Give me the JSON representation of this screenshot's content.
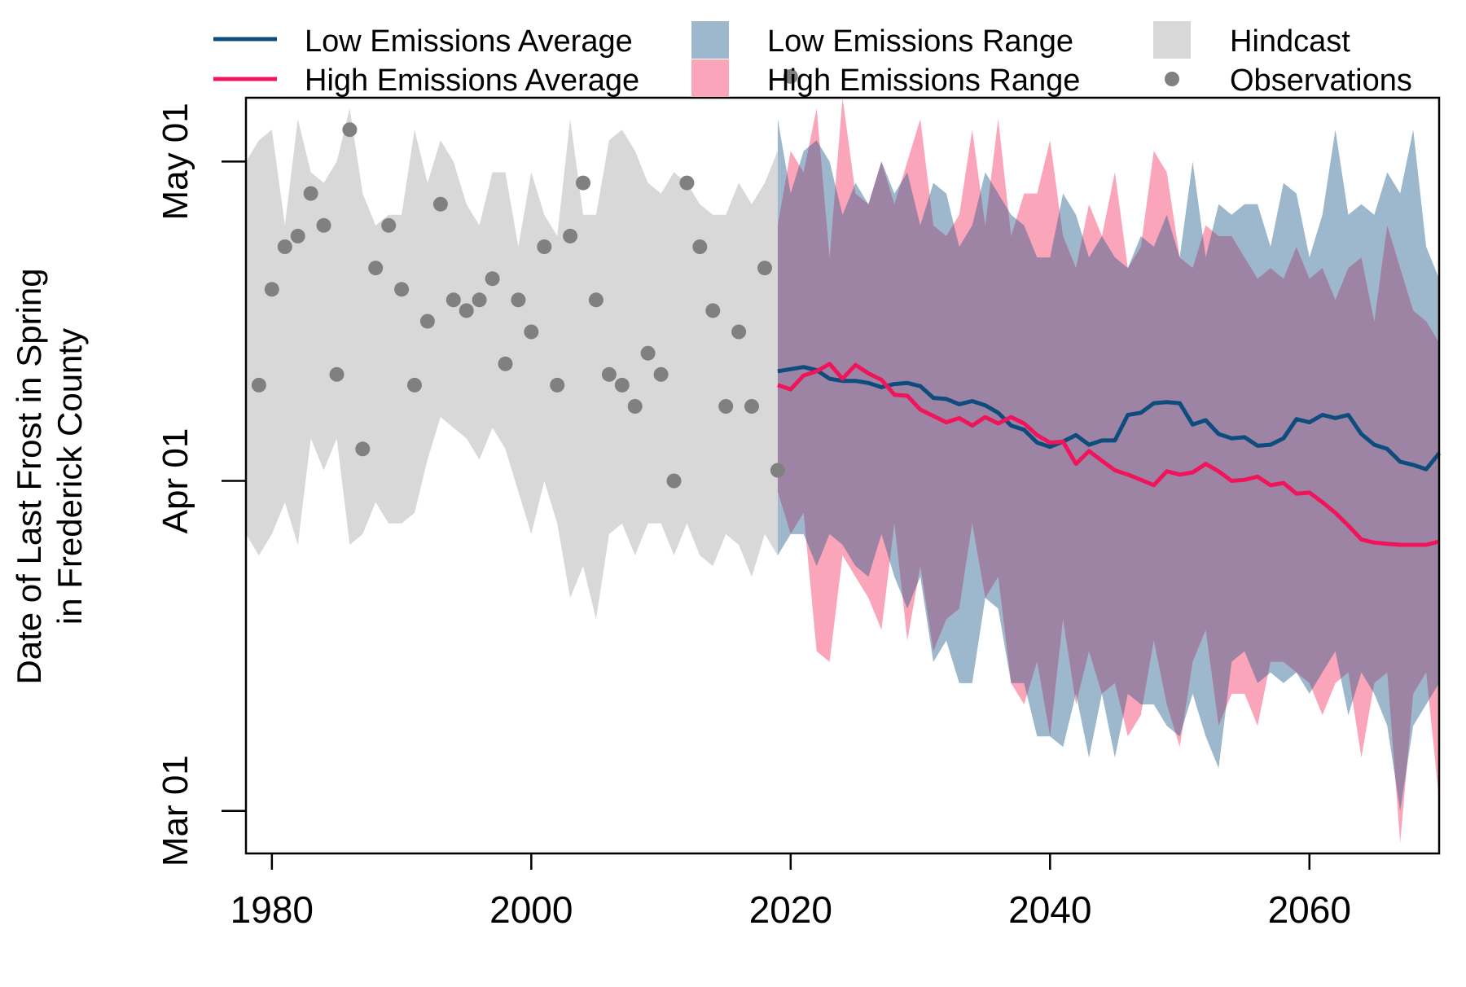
{
  "chart_data": {
    "type": "area",
    "title": "",
    "xlabel": "",
    "ylabel_line1": "Date of Last Frost in Spring",
    "ylabel_line2": "in Frederick County",
    "x_ticks": [
      1980,
      2000,
      2020,
      2040,
      2060
    ],
    "x_tick_labels": [
      "1980",
      "2000",
      "2020",
      "2040",
      "2060"
    ],
    "xlim": [
      1978,
      2070
    ],
    "y_unit": "day of year",
    "ylim": [
      56,
      127
    ],
    "y_ticks": [
      {
        "label": "Mar 01",
        "value": 60
      },
      {
        "label": "Apr 01",
        "value": 91
      },
      {
        "label": "May 01",
        "value": 121
      }
    ],
    "grid": false,
    "legend_position": "top",
    "legend": {
      "low_avg": "Low Emissions Average",
      "high_avg": "High Emissions Average",
      "low_range": "Low Emissions Range",
      "high_range": "High Emissions Range",
      "hindcast": "Hindcast",
      "observations": "Observations"
    },
    "colors": {
      "low_avg": "#0e4c7e",
      "high_avg": "#f0155a",
      "low_range": "#9db8cc",
      "high_range": "#fba5ba",
      "overlap": "#9e84a4",
      "hindcast": "#d8d8d8",
      "observations": "#808080"
    },
    "series": [
      {
        "name": "Hindcast",
        "kind": "range",
        "x": [
          1978,
          1979,
          1980,
          1981,
          1982,
          1983,
          1984,
          1985,
          1986,
          1987,
          1988,
          1989,
          1990,
          1991,
          1992,
          1993,
          1994,
          1995,
          1996,
          1997,
          1998,
          1999,
          2000,
          2001,
          2002,
          2003,
          2004,
          2005,
          2006,
          2007,
          2008,
          2009,
          2010,
          2011,
          2012,
          2013,
          2014,
          2015,
          2016,
          2017,
          2018,
          2019
        ],
        "upper": [
          121,
          123,
          124,
          115,
          125,
          120,
          119,
          121,
          126,
          118,
          115,
          116,
          116,
          124,
          119,
          123,
          121,
          117,
          115,
          120,
          120,
          113,
          120,
          116,
          114,
          125,
          116,
          116,
          123,
          124,
          122,
          119,
          118,
          120,
          119,
          117,
          116,
          116,
          119,
          117,
          119,
          122
        ],
        "lower": [
          86,
          84,
          86,
          89,
          85,
          95,
          92,
          95,
          85,
          86,
          89,
          87,
          87,
          88,
          93,
          97,
          96,
          95,
          93,
          96,
          94,
          90,
          86,
          91,
          87,
          80,
          83,
          78,
          86,
          87,
          84,
          87,
          87,
          84,
          87,
          84,
          83,
          86,
          85,
          82,
          86,
          84
        ]
      },
      {
        "name": "Low Emissions Range",
        "kind": "range",
        "x": [
          2019,
          2020,
          2021,
          2022,
          2023,
          2024,
          2025,
          2026,
          2027,
          2028,
          2029,
          2030,
          2031,
          2032,
          2033,
          2034,
          2035,
          2036,
          2037,
          2038,
          2039,
          2040,
          2041,
          2042,
          2043,
          2044,
          2045,
          2046,
          2047,
          2048,
          2049,
          2050,
          2051,
          2052,
          2053,
          2054,
          2055,
          2056,
          2057,
          2058,
          2059,
          2060,
          2061,
          2062,
          2063,
          2064,
          2065,
          2066,
          2067,
          2068,
          2069,
          2070
        ],
        "upper": [
          125,
          118,
          122,
          123,
          121,
          116,
          119,
          117,
          121,
          118,
          120,
          115,
          119,
          118,
          113,
          115,
          120,
          118,
          116,
          115,
          112,
          112,
          118,
          116,
          112,
          114,
          112,
          111,
          114,
          113,
          116,
          112,
          121,
          112,
          117,
          116,
          117,
          117,
          113,
          119,
          118,
          112,
          116,
          124,
          116,
          117,
          116,
          120,
          118,
          124,
          113,
          110
        ],
        "lower": [
          84,
          86,
          86,
          83,
          86,
          85,
          83,
          82,
          86,
          82,
          79,
          82,
          74,
          76,
          72,
          72,
          80,
          79,
          72,
          72,
          67,
          67,
          66,
          71,
          65,
          71,
          65,
          71,
          70,
          70,
          68,
          67,
          71,
          67,
          64,
          74,
          75,
          72,
          73,
          72,
          73,
          71,
          73,
          75,
          69,
          73,
          71,
          68,
          60,
          68,
          70,
          72
        ]
      },
      {
        "name": "High Emissions Range",
        "kind": "range",
        "x": [
          2019,
          2020,
          2021,
          2022,
          2023,
          2024,
          2025,
          2026,
          2027,
          2028,
          2029,
          2030,
          2031,
          2032,
          2033,
          2034,
          2035,
          2036,
          2037,
          2038,
          2039,
          2040,
          2041,
          2042,
          2043,
          2044,
          2045,
          2046,
          2047,
          2048,
          2049,
          2050,
          2051,
          2052,
          2053,
          2054,
          2055,
          2056,
          2057,
          2058,
          2059,
          2060,
          2061,
          2062,
          2063,
          2064,
          2065,
          2066,
          2067,
          2068,
          2069,
          2070
        ],
        "upper": [
          115,
          122,
          120,
          126,
          112,
          127,
          118,
          117,
          121,
          117,
          121,
          125,
          115,
          114,
          116,
          124,
          115,
          125,
          114,
          118,
          118,
          123,
          114,
          111,
          117,
          114,
          120,
          111,
          113,
          122,
          120,
          112,
          111,
          115,
          114,
          114,
          112,
          110,
          111,
          110,
          113,
          110,
          111,
          108,
          111,
          112,
          106,
          115,
          111,
          107,
          106,
          104
        ],
        "lower": [
          90,
          86,
          88,
          75,
          74,
          84,
          82,
          80,
          77,
          87,
          76,
          83,
          75,
          78,
          79,
          87,
          80,
          82,
          72,
          70,
          74,
          67,
          78,
          70,
          75,
          71,
          72,
          67,
          69,
          76,
          70,
          66,
          74,
          77,
          68,
          71,
          71,
          68,
          74,
          74,
          73,
          72,
          69,
          72,
          73,
          65,
          72,
          73,
          57,
          71,
          73,
          61
        ]
      },
      {
        "name": "Low Emissions Average",
        "kind": "line",
        "x": [
          2019,
          2020,
          2021,
          2022,
          2023,
          2024,
          2025,
          2026,
          2027,
          2028,
          2029,
          2030,
          2031,
          2032,
          2033,
          2034,
          2035,
          2036,
          2037,
          2038,
          2039,
          2040,
          2041,
          2042,
          2043,
          2044,
          2045,
          2046,
          2047,
          2048,
          2049,
          2050,
          2051,
          2052,
          2053,
          2054,
          2055,
          2056,
          2057,
          2058,
          2059,
          2060,
          2061,
          2062,
          2063,
          2064,
          2065,
          2066,
          2067,
          2068,
          2069,
          2070
        ],
        "y": [
          101.3,
          101.5,
          101.7,
          101.4,
          100.6,
          100.4,
          100.4,
          100.2,
          99.8,
          100.1,
          100.2,
          99.9,
          98.8,
          98.7,
          98.2,
          98.5,
          98.1,
          97.4,
          96.2,
          95.8,
          94.6,
          94.2,
          94.7,
          95.3,
          94.4,
          94.8,
          94.8,
          97.2,
          97.4,
          98.3,
          98.4,
          98.3,
          96.3,
          96.7,
          95.4,
          95.0,
          95.1,
          94.3,
          94.4,
          95.0,
          96.8,
          96.5,
          97.2,
          96.9,
          97.2,
          95.4,
          94.4,
          94.0,
          92.8,
          92.5,
          92.1,
          93.6
        ]
      },
      {
        "name": "High Emissions Average",
        "kind": "line",
        "x": [
          2019,
          2020,
          2021,
          2022,
          2023,
          2024,
          2025,
          2026,
          2027,
          2028,
          2029,
          2030,
          2031,
          2032,
          2033,
          2034,
          2035,
          2036,
          2037,
          2038,
          2039,
          2040,
          2041,
          2042,
          2043,
          2044,
          2045,
          2046,
          2047,
          2048,
          2049,
          2050,
          2051,
          2052,
          2053,
          2054,
          2055,
          2056,
          2057,
          2058,
          2059,
          2060,
          2061,
          2062,
          2063,
          2064,
          2065,
          2066,
          2067,
          2068,
          2069,
          2070
        ],
        "y": [
          100.0,
          99.6,
          100.9,
          101.3,
          102.0,
          100.6,
          101.9,
          101.1,
          100.5,
          99.1,
          99.0,
          97.7,
          97.1,
          96.5,
          96.9,
          96.2,
          97.0,
          96.4,
          97.0,
          96.4,
          95.3,
          94.6,
          94.7,
          92.6,
          93.8,
          92.9,
          92.0,
          91.6,
          91.1,
          90.6,
          91.9,
          91.6,
          91.8,
          92.6,
          91.9,
          91.0,
          91.1,
          91.4,
          90.6,
          90.8,
          89.8,
          89.9,
          89.0,
          88.0,
          86.8,
          85.5,
          85.2,
          85.1,
          85.0,
          85.0,
          85.0,
          85.3
        ]
      },
      {
        "name": "Observations",
        "kind": "points",
        "x": [
          1979,
          1980,
          1981,
          1982,
          1983,
          1984,
          1985,
          1986,
          1987,
          1988,
          1989,
          1990,
          1991,
          1992,
          1993,
          1994,
          1995,
          1996,
          1997,
          1998,
          1999,
          2000,
          2001,
          2002,
          2003,
          2004,
          2005,
          2006,
          2007,
          2008,
          2009,
          2010,
          2011,
          2012,
          2013,
          2014,
          2015,
          2016,
          2017,
          2018,
          2019,
          2020
        ],
        "y": [
          100,
          109,
          113,
          114,
          118,
          115,
          101,
          124,
          94,
          111,
          115,
          109,
          100,
          106,
          117,
          108,
          107,
          108,
          110,
          102,
          108,
          105,
          113,
          100,
          114,
          119,
          108,
          101,
          100,
          98,
          103,
          101,
          91,
          119,
          113,
          107,
          98,
          105,
          98,
          111,
          92,
          129
        ]
      }
    ]
  }
}
